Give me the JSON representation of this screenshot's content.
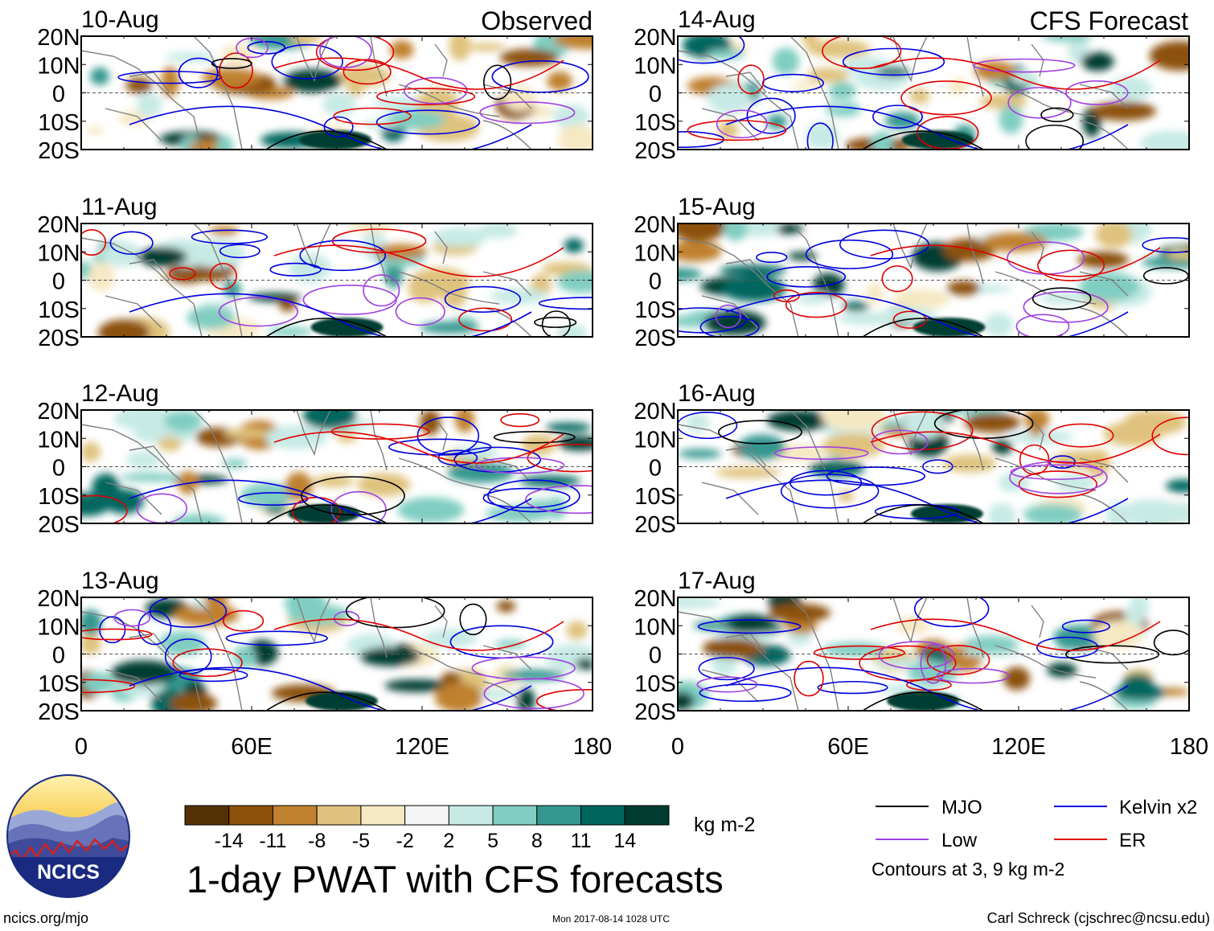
{
  "headings": {
    "observed": "Observed",
    "forecast": "CFS Forecast"
  },
  "observed_dates": [
    "10-Aug",
    "11-Aug",
    "12-Aug",
    "13-Aug"
  ],
  "forecast_dates": [
    "14-Aug",
    "15-Aug",
    "16-Aug",
    "17-Aug"
  ],
  "lat_labels": [
    "20N",
    "10N",
    "0",
    "10S",
    "20S"
  ],
  "lon_labels": [
    "0",
    "60E",
    "120E",
    "180"
  ],
  "colorbar": {
    "ticks": [
      "-14",
      "-11",
      "-8",
      "-5",
      "-2",
      "2",
      "5",
      "8",
      "11",
      "14"
    ],
    "unit": "kg m-2",
    "colors": [
      "#543005",
      "#8c510a",
      "#bf812d",
      "#dfc27d",
      "#f6e8c3",
      "#f5f5f5",
      "#c7eae5",
      "#80cdc1",
      "#35978f",
      "#01665e",
      "#003c30"
    ]
  },
  "title": "1-day PWAT with CFS forecasts",
  "logo": {
    "text": "NCICS"
  },
  "legend": {
    "items": [
      {
        "label": "MJO",
        "color": "#000000"
      },
      {
        "label": "Kelvin x2",
        "color": "#0000dd"
      },
      {
        "label": "Low",
        "color": "#a040e0"
      },
      {
        "label": "ER",
        "color": "#e00000"
      }
    ],
    "note": "Contours at 3, 9 kg m-2"
  },
  "footer": {
    "left": "ncics.org/mjo",
    "center": "Mon 2017-08-14 1028 UTC",
    "right": "Carl Schreck (cjschrec@ncsu.edu)"
  }
}
